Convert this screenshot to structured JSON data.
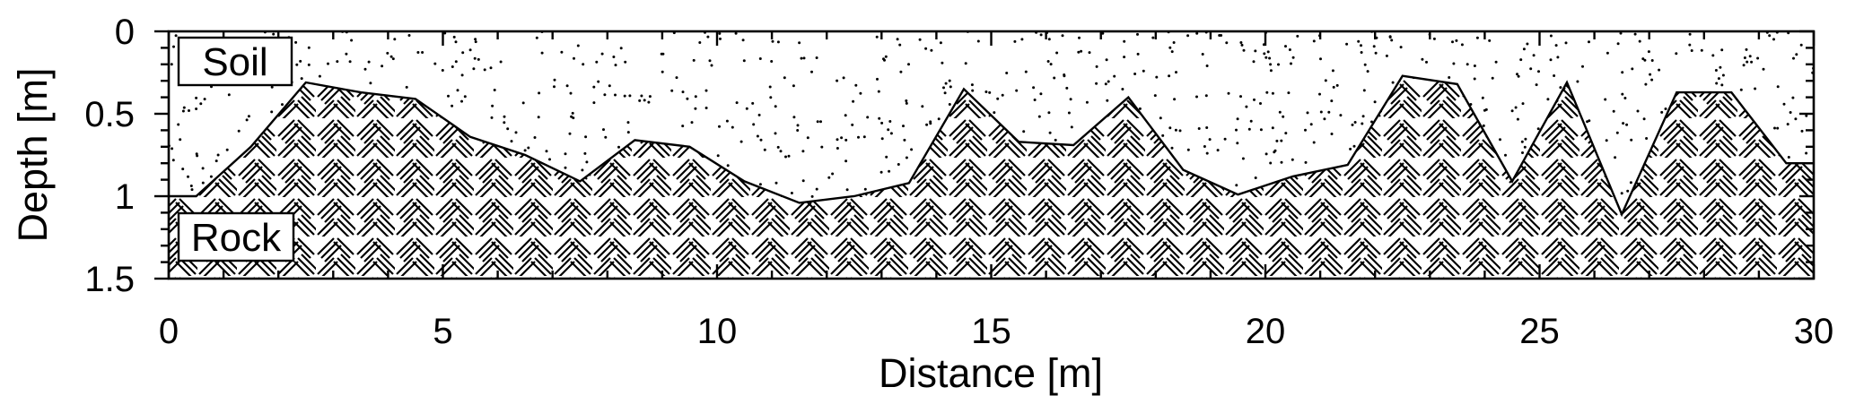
{
  "chart_data": {
    "type": "area",
    "xlabel": "Distance [m]",
    "ylabel": "Depth [m]",
    "xlim": [
      0,
      30
    ],
    "ylim": [
      0,
      1.5
    ],
    "y_inverted": true,
    "x_ticks": [
      0,
      5,
      10,
      15,
      20,
      25,
      30
    ],
    "x_tick_labels": [
      "0",
      "5",
      "10",
      "15",
      "20",
      "25",
      "30"
    ],
    "y_ticks": [
      0,
      0.5,
      1,
      1.5
    ],
    "y_tick_labels": [
      "0",
      "0.5",
      "1",
      "1.5"
    ],
    "grid": false,
    "legend": [
      {
        "label": "Soil",
        "pattern": "stipple",
        "placement": "top-left"
      },
      {
        "label": "Rock",
        "pattern": "basketweave-hatch",
        "placement": "bottom-left"
      }
    ],
    "boundary": {
      "x": [
        0,
        0.5,
        1.5,
        2.5,
        3.5,
        4.5,
        5.5,
        6.5,
        7.5,
        8.5,
        9.5,
        10.5,
        11.5,
        12.5,
        13.5,
        14.5,
        15.5,
        16.5,
        17.5,
        18.5,
        19.5,
        20.5,
        21.5,
        22.5,
        23.5,
        24.5,
        25.5,
        26.5,
        27.5,
        28.5,
        29.5,
        30
      ],
      "depth": [
        1.0,
        1.0,
        0.7,
        0.31,
        0.37,
        0.41,
        0.64,
        0.75,
        0.91,
        0.66,
        0.7,
        0.91,
        1.04,
        1.0,
        0.92,
        0.35,
        0.67,
        0.69,
        0.4,
        0.84,
        0.99,
        0.88,
        0.81,
        0.27,
        0.32,
        0.91,
        0.31,
        1.11,
        0.37,
        0.37,
        0.8,
        0.8
      ]
    }
  }
}
